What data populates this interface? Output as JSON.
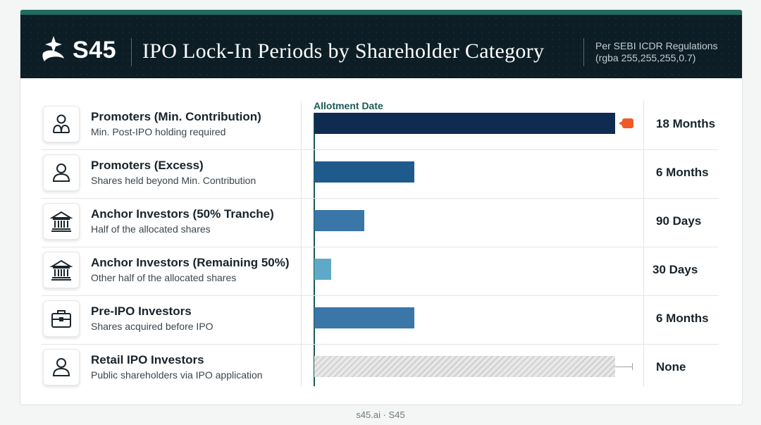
{
  "header": {
    "logo_text": "S45",
    "title": "IPO Lock-In Periods by Shareholder Category",
    "regulation_line1": "Per SEBI ICDR Regulations",
    "regulation_line2": "(rgba 255,255,255,0.7)"
  },
  "axis_label": "Allotment Date",
  "footer": "s45.ai · S45",
  "colors": {
    "header_bg": "#0d1d26",
    "accent": "#1b5b54",
    "marker": "#f05a28"
  },
  "chart_data": {
    "type": "bar",
    "orientation": "horizontal",
    "unit": "months",
    "categories": [
      "Promoters (Min. Contribution)",
      "Promoters (Excess)",
      "Anchor Investors (50% Tranche)",
      "Anchor Investors (Remaining 50%)",
      "Pre-IPO Investors",
      "Retail IPO Investors"
    ],
    "values": [
      18,
      6,
      3,
      1,
      6,
      0
    ],
    "value_labels": [
      "18 Months",
      "6 Months",
      "90 Days",
      "30 Days",
      "6 Months",
      "None"
    ],
    "xlim": [
      0,
      18
    ],
    "colors": [
      "#0f2b52",
      "#1f5a8c",
      "#3a76a8",
      "#5fa9c8",
      "#3a76a8",
      "#d4d4d4"
    ]
  },
  "rows": [
    {
      "icon": "person-group-icon",
      "title": "Promoters (Min. Contribution)",
      "subtitle": "Min. Post-IPO holding required",
      "duration": "18 Months"
    },
    {
      "icon": "person-icon",
      "title": "Promoters (Excess)",
      "subtitle": "Shares held beyond Min. Contribution",
      "duration": "6 Months"
    },
    {
      "icon": "bank-icon",
      "title": "Anchor Investors (50% Tranche)",
      "subtitle": "Half of the allocated shares",
      "duration": "90 Days"
    },
    {
      "icon": "bank-icon",
      "title": "Anchor Investors (Remaining 50%)",
      "subtitle": "Other half of the allocated shares",
      "duration": "30 Days"
    },
    {
      "icon": "briefcase-icon",
      "title": "Pre-IPO Investors",
      "subtitle": "Shares acquired before IPO",
      "duration": "6 Months"
    },
    {
      "icon": "person-icon",
      "title": "Retail IPO Investors",
      "subtitle": "Public shareholders via IPO application",
      "duration": "None"
    }
  ]
}
